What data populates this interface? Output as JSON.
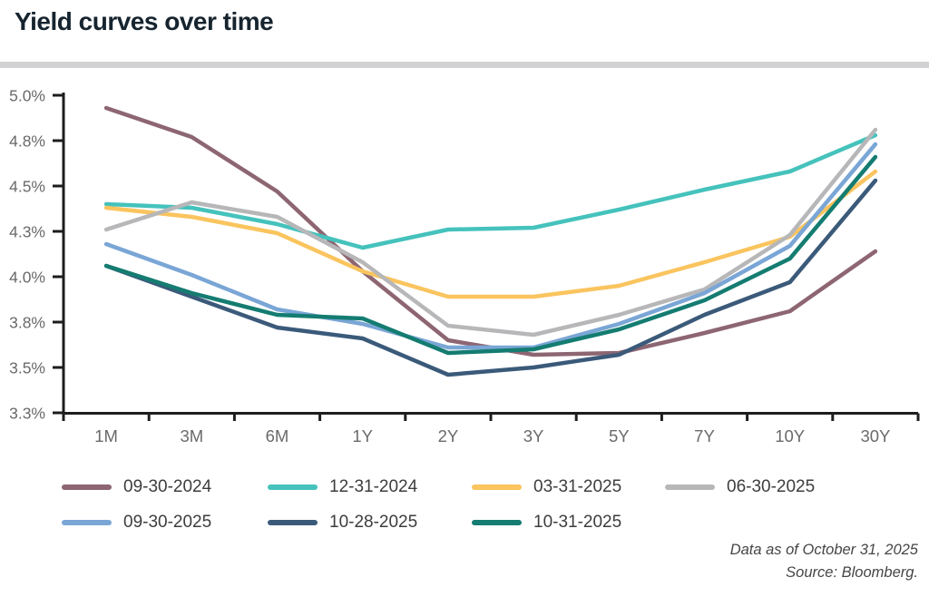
{
  "page": {
    "title": "Yield curves over time"
  },
  "footer": {
    "line1": "Data as of October 31, 2025",
    "line2": "Source: Bloomberg."
  },
  "chart_data": {
    "type": "line",
    "title": "Yield curves over time",
    "xlabel": "",
    "ylabel": "",
    "grid": false,
    "legend_position": "bottom",
    "categories": [
      "1M",
      "3M",
      "6M",
      "1Y",
      "2Y",
      "3Y",
      "5Y",
      "7Y",
      "10Y",
      "30Y"
    ],
    "y_axis": {
      "min": 3.25,
      "max": 5.0,
      "tick_values": [
        5.0,
        4.75,
        4.5,
        4.25,
        4.0,
        3.75,
        3.5,
        3.25
      ],
      "tick_labels": [
        "5.0%",
        "4.8%",
        "4.5%",
        "4.3%",
        "4.0%",
        "3.8%",
        "3.5%",
        "3.3%"
      ]
    },
    "series": [
      {
        "name": "09-30-2024",
        "color": "#8d6672",
        "values": [
          4.93,
          4.77,
          4.47,
          4.03,
          3.65,
          3.57,
          3.58,
          3.69,
          3.81,
          4.14
        ]
      },
      {
        "name": "12-31-2024",
        "color": "#45c2bc",
        "values": [
          4.4,
          4.38,
          4.29,
          4.16,
          4.26,
          4.27,
          4.37,
          4.48,
          4.58,
          4.78
        ]
      },
      {
        "name": "03-31-2025",
        "color": "#fac45e",
        "values": [
          4.38,
          4.33,
          4.24,
          4.03,
          3.89,
          3.89,
          3.95,
          4.08,
          4.22,
          4.58
        ]
      },
      {
        "name": "06-30-2025",
        "color": "#b7b7b9",
        "values": [
          4.26,
          4.41,
          4.33,
          4.08,
          3.73,
          3.68,
          3.79,
          3.93,
          4.23,
          4.81
        ]
      },
      {
        "name": "09-30-2025",
        "color": "#7aa6d6",
        "values": [
          4.18,
          4.01,
          3.82,
          3.74,
          3.61,
          3.61,
          3.74,
          3.91,
          4.17,
          4.73
        ]
      },
      {
        "name": "10-28-2025",
        "color": "#3b5a7a",
        "values": [
          4.06,
          3.89,
          3.72,
          3.66,
          3.46,
          3.5,
          3.57,
          3.79,
          3.97,
          4.53
        ]
      },
      {
        "name": "10-31-2025",
        "color": "#147c71",
        "values": [
          4.06,
          3.91,
          3.79,
          3.77,
          3.58,
          3.6,
          3.71,
          3.87,
          4.1,
          4.66
        ]
      }
    ]
  },
  "colors": {
    "title": "#16242f",
    "axis": "#1d1d1d",
    "axis_label": "#6a6a6a",
    "legend_label": "#3d3d3d",
    "divider": "#d2d2d4",
    "background": "#ffffff"
  }
}
